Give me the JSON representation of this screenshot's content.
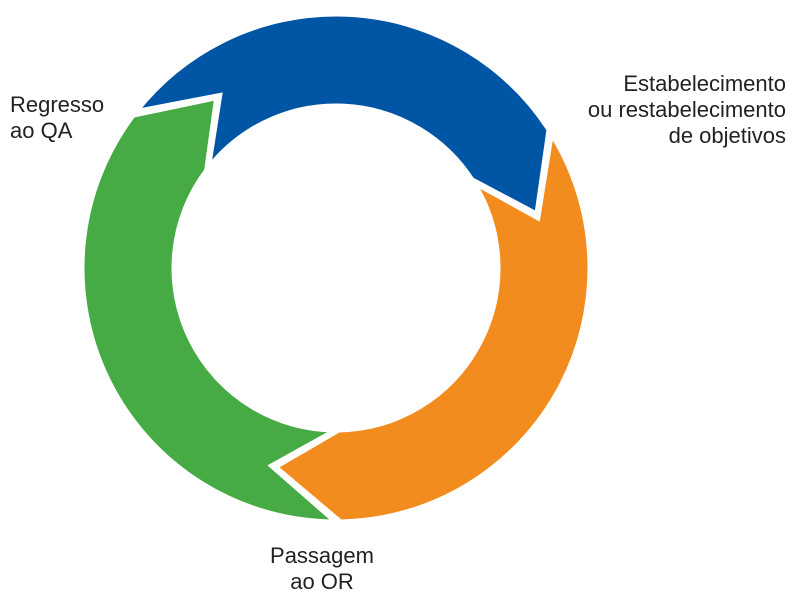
{
  "stages": [
    {
      "id": "goal",
      "lines": [
        "Estabelecimento",
        "ou restabelecimento",
        "de objetivos"
      ],
      "color": "#0055a5"
    },
    {
      "id": "pass",
      "lines": [
        "Passagem",
        "ao OR"
      ],
      "color": "#f28c1e"
    },
    {
      "id": "return",
      "lines": [
        "Regresso",
        "ao QA"
      ],
      "color": "#47ab45"
    }
  ]
}
